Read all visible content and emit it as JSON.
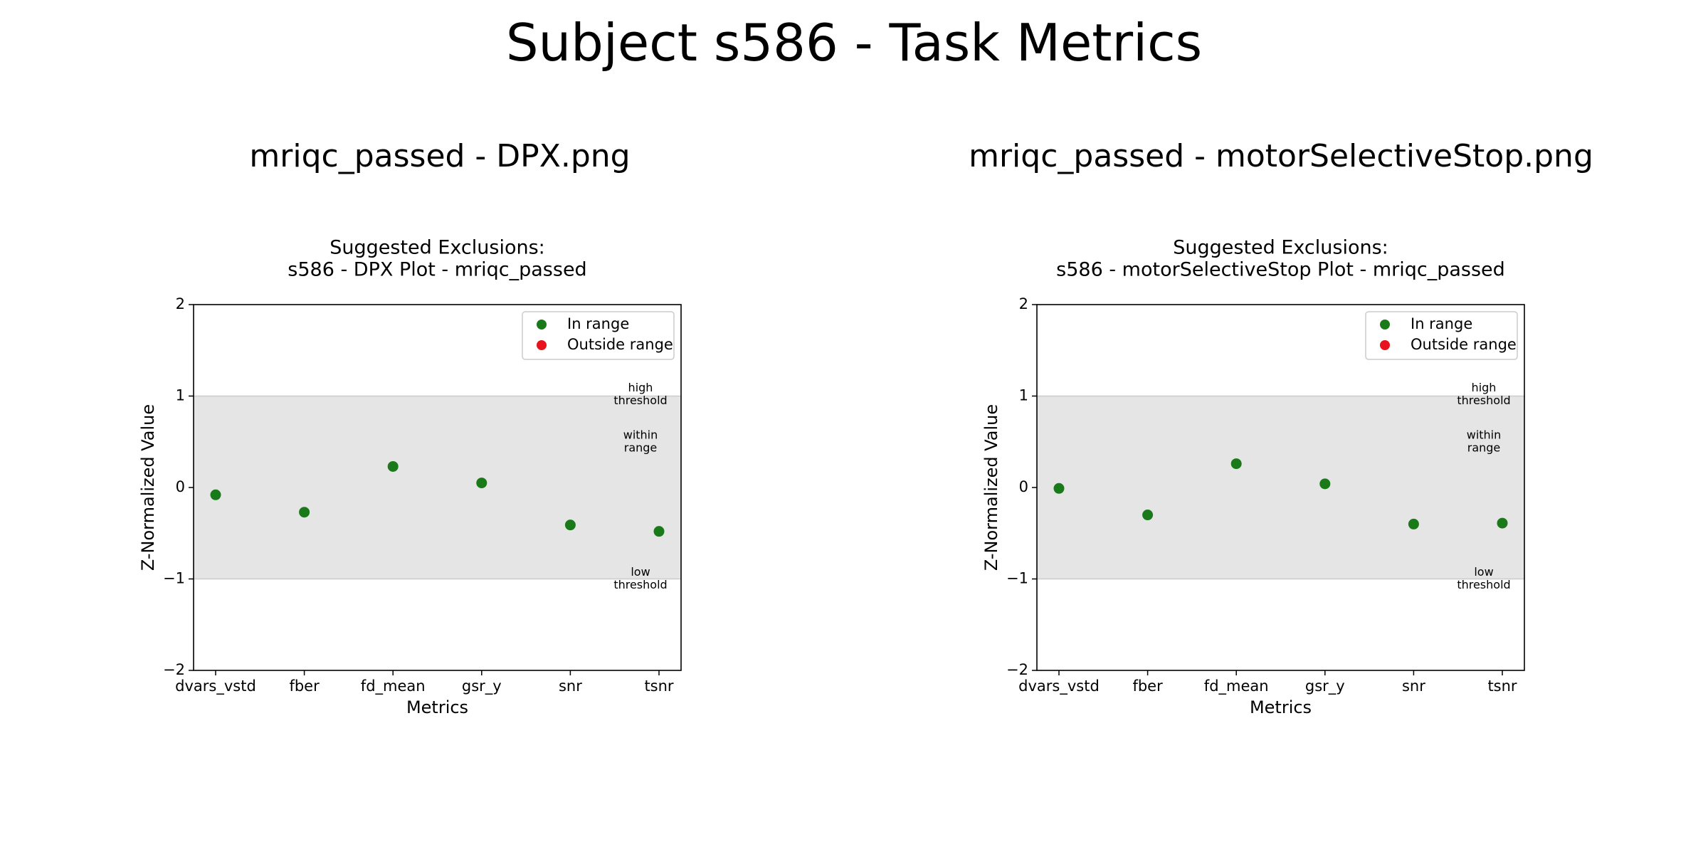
{
  "page_title": "Subject s586 - Task Metrics",
  "panels": [
    {
      "title": "mriqc_passed - DPX.png"
    },
    {
      "title": "mriqc_passed - motorSelectiveStop.png"
    }
  ],
  "colors": {
    "in_range": "#1a7a1a",
    "outside_range": "#e8131c",
    "band": "#e5e5e5"
  },
  "chart_data": [
    {
      "type": "scatter",
      "title": "Suggested Exclusions:\ns586 - DPX Plot - mriqc_passed",
      "xlabel": "Metrics",
      "ylabel": "Z-Normalized Value",
      "categories": [
        "dvars_vstd",
        "fber",
        "fd_mean",
        "gsr_y",
        "snr",
        "tsnr"
      ],
      "ylim": [
        -2,
        2
      ],
      "yticks": [
        2,
        1,
        0,
        -1,
        -2
      ],
      "ytick_labels": [
        "2",
        "1",
        "0",
        "−1",
        "−2"
      ],
      "band": [
        -1,
        1
      ],
      "series": [
        {
          "name": "In range",
          "values": [
            -0.08,
            -0.27,
            0.23,
            0.05,
            -0.41,
            -0.48
          ]
        },
        {
          "name": "Outside range",
          "values": []
        }
      ],
      "annotations": [
        {
          "text": "high\nthreshold",
          "y": 1
        },
        {
          "text": "within\nrange",
          "y": 0.5
        },
        {
          "text": "low\nthreshold",
          "y": -1
        }
      ],
      "legend_position": "upper right",
      "grid": false
    },
    {
      "type": "scatter",
      "title": "Suggested Exclusions:\ns586 - motorSelectiveStop Plot - mriqc_passed",
      "xlabel": "Metrics",
      "ylabel": "Z-Normalized Value",
      "categories": [
        "dvars_vstd",
        "fber",
        "fd_mean",
        "gsr_y",
        "snr",
        "tsnr"
      ],
      "ylim": [
        -2,
        2
      ],
      "yticks": [
        2,
        1,
        0,
        -1,
        -2
      ],
      "ytick_labels": [
        "2",
        "1",
        "0",
        "−1",
        "−2"
      ],
      "band": [
        -1,
        1
      ],
      "series": [
        {
          "name": "In range",
          "values": [
            -0.01,
            -0.3,
            0.26,
            0.04,
            -0.4,
            -0.39
          ]
        },
        {
          "name": "Outside range",
          "values": []
        }
      ],
      "annotations": [
        {
          "text": "high\nthreshold",
          "y": 1
        },
        {
          "text": "within\nrange",
          "y": 0.5
        },
        {
          "text": "low\nthreshold",
          "y": -1
        }
      ],
      "legend_position": "upper right",
      "grid": false
    }
  ]
}
